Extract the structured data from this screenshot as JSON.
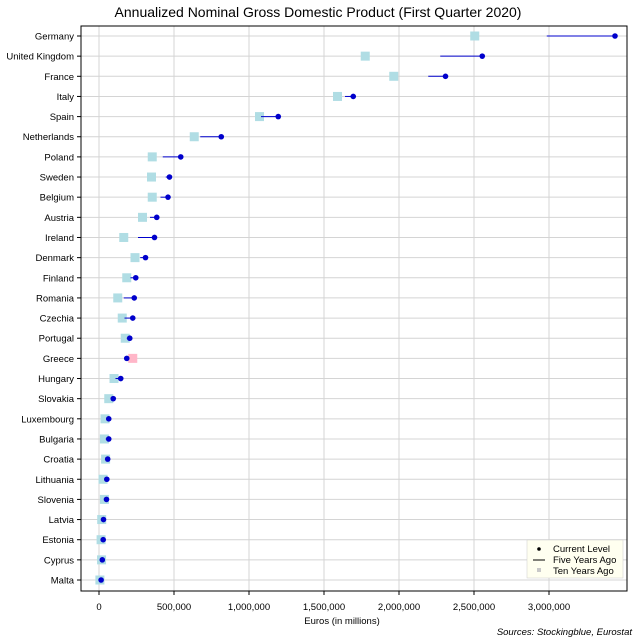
{
  "chart_data": {
    "type": "scatter",
    "title": "Annualized Nominal Gross Domestic Product (First Quarter 2020)",
    "xlabel": "Euros (in millions)",
    "ylabel": "",
    "source": "Sources: Stockingblue, Eurostat",
    "xlim": [
      -120000,
      3520000
    ],
    "xticks": [
      0,
      500000,
      1000000,
      1500000,
      2000000,
      2500000,
      3000000
    ],
    "xtick_labels": [
      "0",
      "500,000",
      "1,000,000",
      "1,500,000",
      "2,000,000",
      "2,500,000",
      "3,000,000"
    ],
    "grid": true,
    "legend_position": "bottom-right",
    "legend": {
      "current": "Current Level",
      "five": "Five Years Ago",
      "ten": "Ten Years Ago"
    },
    "colors": {
      "current": "#0000cc",
      "five_line": "#0000cc",
      "ten_up": "#b0dde4",
      "ten_down": "#ffb6c8",
      "grid": "#d4d4d4",
      "legend_bg": "#fffff0"
    },
    "categories": [
      "Germany",
      "United Kingdom",
      "France",
      "Italy",
      "Spain",
      "Netherlands",
      "Poland",
      "Sweden",
      "Belgium",
      "Austria",
      "Ireland",
      "Denmark",
      "Finland",
      "Romania",
      "Czechia",
      "Portugal",
      "Greece",
      "Hungary",
      "Slovakia",
      "Luxembourg",
      "Bulgaria",
      "Croatia",
      "Lithuania",
      "Slovenia",
      "Latvia",
      "Estonia",
      "Cyprus",
      "Malta"
    ],
    "series": [
      {
        "name": "Current Level",
        "values": [
          3440000,
          2555000,
          2310000,
          1695000,
          1195000,
          815000,
          545000,
          470000,
          460000,
          385000,
          370000,
          310000,
          245000,
          235000,
          225000,
          205000,
          185000,
          145000,
          95000,
          65000,
          65000,
          58000,
          52000,
          50000,
          30000,
          28000,
          22000,
          14000
        ]
      },
      {
        "name": "Five Years Ago",
        "values": [
          2985000,
          2275000,
          2195000,
          1640000,
          1080000,
          675000,
          425000,
          445000,
          410000,
          340000,
          260000,
          275000,
          210000,
          165000,
          170000,
          185000,
          180000,
          110000,
          78000,
          52000,
          45000,
          45000,
          38000,
          38000,
          24000,
          21000,
          18000,
          9000
        ]
      },
      {
        "name": "Ten Years Ago",
        "values": [
          2505000,
          1775000,
          1965000,
          1590000,
          1070000,
          635000,
          355000,
          350000,
          355000,
          290000,
          165000,
          240000,
          185000,
          125000,
          155000,
          175000,
          225000,
          100000,
          65000,
          40000,
          36000,
          44000,
          27000,
          36000,
          18000,
          14000,
          17000,
          6000
        ]
      }
    ]
  }
}
